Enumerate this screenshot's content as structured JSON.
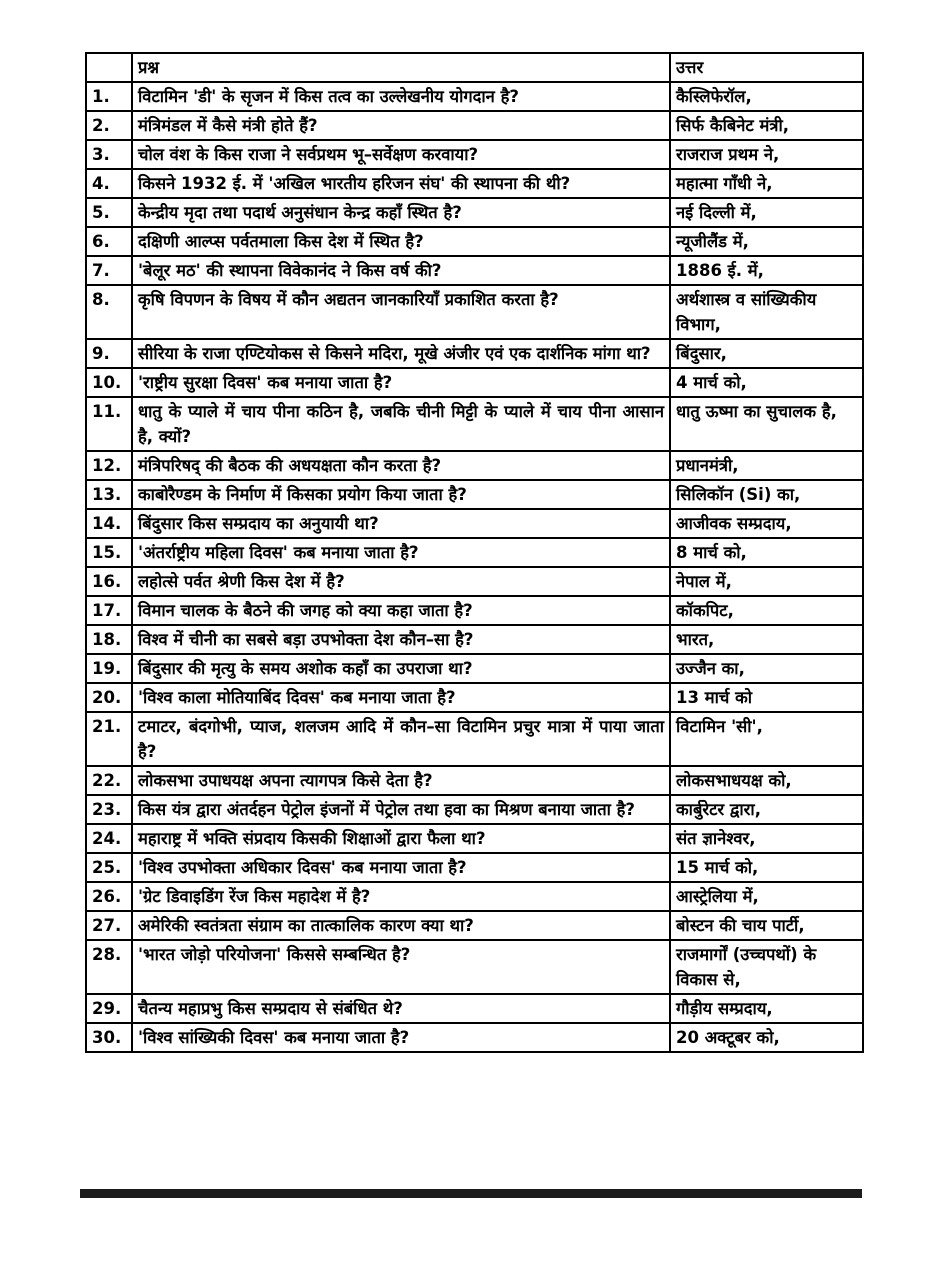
{
  "table": {
    "headers": {
      "number": "",
      "question": "प्रश्न",
      "answer": "उत्तर"
    },
    "rows": [
      {
        "num": "1.",
        "q": "विटामिन 'डी' के सृजन में किस तत्व का उल्लेखनीय योगदान है?",
        "a": "कैस्लिफेरॉल,"
      },
      {
        "num": "2.",
        "q": "मंत्रिमंडल में कैसे मंत्री होते हैं?",
        "a": "सिर्फ कैबिनेट मंत्री,"
      },
      {
        "num": "3.",
        "q": "चोल वंश के किस राजा ने सर्वप्रथम भू–सर्वेक्षण करवाया?",
        "a": "राजराज प्रथम ने,"
      },
      {
        "num": "4.",
        "q": "किसने 1932 ई. में 'अखिल भारतीय हरिजन संघ' की स्थापना की थी?",
        "a": "महात्मा गाँधी ने,"
      },
      {
        "num": "5.",
        "q": "केन्द्रीय मृदा तथा पदार्थ अनुसंधान केन्द्र कहाँ स्थित है?",
        "a": "नई दिल्ली में,"
      },
      {
        "num": "6.",
        "q": "दक्षिणी आल्प्स पर्वतमाला किस देश में स्थित है?",
        "a": "न्यूजीलैंड में,"
      },
      {
        "num": "7.",
        "q": "'बेलूर मठ' की स्थापना विवेकानंद ने किस वर्ष की?",
        "a": "1886 ई. में,"
      },
      {
        "num": "8.",
        "q": "कृषि विपणन के विषय में कौन अद्यतन जानकारियाँ प्रकाशित करता है?",
        "a": "अर्थशास्त्र व सांख्यिकीय विभाग,"
      },
      {
        "num": "9.",
        "q": "सीरिया के राजा एण्टियोकस से किसने मदिरा, मूखे अंजीर एवं एक दार्शनिक मांगा था?",
        "a": "बिंदुसार,"
      },
      {
        "num": "10.",
        "q": "'राष्ट्रीय सुरक्षा दिवस' कब मनाया जाता है?",
        "a": "4 मार्च को,"
      },
      {
        "num": "11.",
        "q": "धातु के प्याले में चाय पीना कठिन है, जबकि चीनी मिट्टी के प्याले में चाय पीना आसान है, क्यों?",
        "a": "धातु ऊष्मा का सुचालक है,"
      },
      {
        "num": "12.",
        "q": "मंत्रिपरिषद् की बैठक की अधयक्षता कौन करता है?",
        "a": "प्रधानमंत्री,"
      },
      {
        "num": "13.",
        "q": "काबोरैण्डम के निर्माण में किसका प्रयोग किया जाता है?",
        "a": "सिलिकॉन (Si) का,"
      },
      {
        "num": "14.",
        "q": "बिंदुसार किस सम्प्रदाय का अनुयायी था?",
        "a": "आजीवक सम्प्रदाय,"
      },
      {
        "num": "15.",
        "q": "'अंतर्राष्ट्रीय महिला दिवस' कब मनाया जाता है?",
        "a": "8 मार्च को,"
      },
      {
        "num": "16.",
        "q": "लहोत्से पर्वत श्रेणी किस देश में है?",
        "a": "नेपाल में,"
      },
      {
        "num": "17.",
        "q": "विमान चालक के बैठने की जगह को क्या कहा जाता है?",
        "a": "कॉकपिट,"
      },
      {
        "num": "18.",
        "q": "विश्व में चीनी का सबसे बड़ा उपभोक्ता देश कौन–सा है?",
        "a": "भारत,"
      },
      {
        "num": "19.",
        "q": "बिंदुसार की मृत्यु के समय अशोक कहाँ का उपराजा था?",
        "a": "उज्जैन का,"
      },
      {
        "num": "20.",
        "q": "'विश्व काला मोतियाबिंद दिवस' कब मनाया जाता है?",
        "a": "13 मार्च को"
      },
      {
        "num": "21.",
        "q": "टमाटर, बंदगोभी, प्याज, शलजम आदि में कौन–सा विटामिन प्रचुर मात्रा में पाया जाता है?",
        "a": "विटामिन 'सी',"
      },
      {
        "num": "22.",
        "q": "लोकसभा उपाधयक्ष अपना त्यागपत्र किसे देता है?",
        "a": "लोकसभाधयक्ष को,"
      },
      {
        "num": "23.",
        "q": "किस यंत्र द्वारा अंतर्दहन पेट्रोल इंजनों में पेट्रोल तथा हवा का मिश्रण बनाया जाता है?",
        "a": "कार्बुरेटर द्वारा,"
      },
      {
        "num": "24.",
        "q": "महाराष्ट्र में भक्ति संप्रदाय किसकी शिक्षाओं द्वारा फैला था?",
        "a": "संत ज्ञानेश्वर,"
      },
      {
        "num": "25.",
        "q": "'विश्व उपभोक्ता अधिकार दिवस' कब मनाया जाता है?",
        "a": "15 मार्च को,"
      },
      {
        "num": "26.",
        "q": "'ग्रेट डिवाइडिंग रेंज किस महादेश में है?",
        "a": "आस्ट्रेलिया में,"
      },
      {
        "num": "27.",
        "q": "अमेरिकी स्वतंत्रता संग्राम का तात्कालिक कारण क्या था?",
        "a": "बोस्टन की चाय पार्टी,"
      },
      {
        "num": "28.",
        "q": "'भारत जोड़ो परियोजना' किससे सम्बन्धित है?",
        "a": "राजमार्गों (उच्चपथों) के विकास से,"
      },
      {
        "num": "29.",
        "q": "चैतन्य महाप्रभु किस सम्प्रदाय से संबंधित थे?",
        "a": "गौड़ीय सम्प्रदाय,"
      },
      {
        "num": "30.",
        "q": "'विश्व सांख्यिकी दिवस' कब मनाया जाता है?",
        "a": "20 अक्टूबर को,"
      }
    ]
  }
}
